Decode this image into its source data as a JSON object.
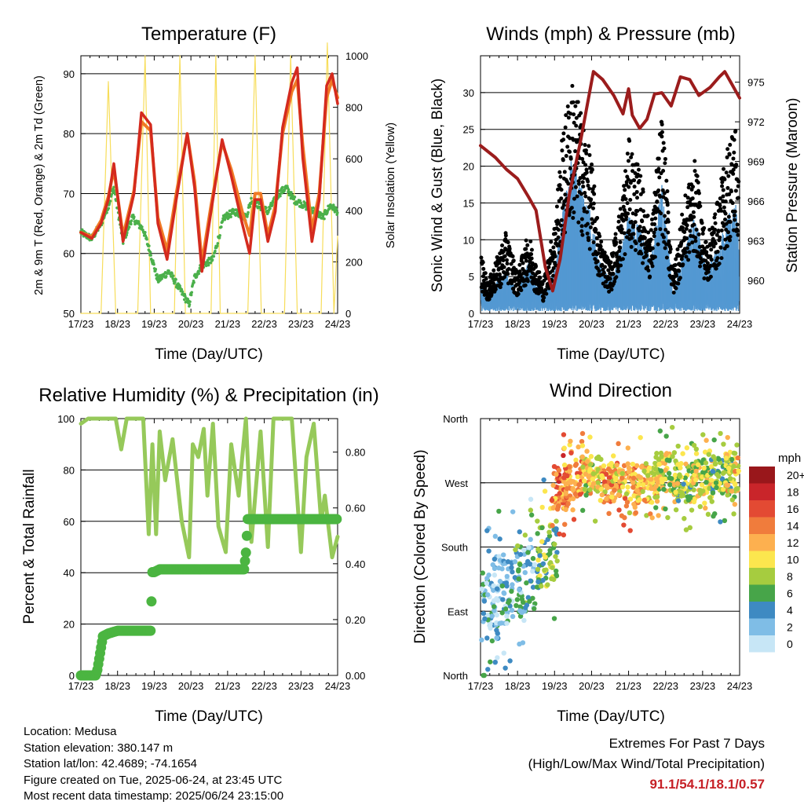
{
  "colors": {
    "temp_2m": "#d42a1e",
    "temp_9m": "#f07a25",
    "dewpoint": "#4bb04b",
    "solar": "#f7dd5a",
    "wind": "#5499d2",
    "gust": "#000000",
    "pressure": "#9b1c1c",
    "rh": "#96c95a",
    "precip": "#4bb541"
  },
  "charts": {
    "temperature": {
      "title": "Temperature (F)",
      "ylabel": "2m & 9m T (Red, Orange) & 2m Td (Green)",
      "y2label": "Solar Insolation (Yellow)",
      "xlabel": "Time (Day/UTC)"
    },
    "winds": {
      "title": "Winds (mph) & Pressure (mb)",
      "ylabel": "Sonic Wind & Gust (Blue, Black)",
      "y2label": "Station Pressure (Maroon)",
      "xlabel": "Time (Day/UTC)"
    },
    "rh": {
      "title": "Relative Humidity (%) & Precipitation (in)",
      "ylabel": "Percent & Total Rainfall",
      "xlabel": "Time (Day/UTC)"
    },
    "direction": {
      "title": "Wind Direction",
      "ylabel": "Direction (Colored By Speed)",
      "xlabel": "Time (Day/UTC)",
      "legend_title": "mph"
    }
  },
  "info": {
    "location": "Location: Medusa",
    "elevation": "Station elevation: 380.147 m",
    "latlon": "Station lat/lon: 42.4689; -74.1654",
    "created": "Figure created on Tue, 2025-06-24, at 23:45 UTC",
    "recent": "Most recent data timestamp: 2025/06/24 23:15:00"
  },
  "extremes": {
    "line1": "Extremes For Past 7 Days",
    "line2": "(High/Low/Max Wind/Total Precipitation)",
    "values": "91.1/54.1/18.1/0.57"
  },
  "chart_data": [
    {
      "type": "line",
      "title": "Temperature (F)",
      "xlabel": "Time (Day/UTC)",
      "ylabel": "2m & 9m T (Red, Orange) & 2m Td (Green)",
      "y2label": "Solar Insolation (Yellow)",
      "x_ticks": [
        "17/23",
        "18/23",
        "19/23",
        "20/23",
        "21/23",
        "22/23",
        "23/23",
        "24/23"
      ],
      "xlim": [
        0,
        7
      ],
      "ylim": [
        50,
        93
      ],
      "y_ticks": [
        50,
        60,
        70,
        80,
        90
      ],
      "y2lim": [
        0,
        1000
      ],
      "y2_ticks": [
        0,
        200,
        400,
        600,
        800,
        1000
      ],
      "series": [
        {
          "name": "2m T",
          "color": "#d42a1e",
          "x": [
            0,
            0.3,
            0.55,
            0.75,
            0.9,
            1.15,
            1.45,
            1.65,
            1.9,
            2.1,
            2.35,
            2.6,
            2.9,
            3.1,
            3.3,
            3.55,
            3.85,
            4.1,
            4.4,
            4.6,
            4.75,
            4.9,
            5.1,
            5.3,
            5.5,
            5.75,
            5.9,
            6.05,
            6.3,
            6.5,
            6.7,
            6.85,
            7.0
          ],
          "y": [
            63.5,
            62.5,
            65,
            69,
            75,
            62,
            70,
            83.5,
            81.5,
            65,
            59,
            69,
            80,
            71,
            57,
            67,
            79,
            73,
            65,
            60,
            69,
            69,
            62,
            67,
            81,
            88.5,
            91,
            76,
            62,
            69,
            88,
            90,
            85
          ]
        },
        {
          "name": "9m T",
          "color": "#f07a25",
          "x": [
            0,
            0.3,
            0.55,
            0.75,
            0.9,
            1.15,
            1.45,
            1.65,
            1.9,
            2.1,
            2.35,
            2.6,
            2.9,
            3.1,
            3.3,
            3.55,
            3.85,
            4.1,
            4.4,
            4.6,
            4.75,
            4.9,
            5.1,
            5.3,
            5.5,
            5.75,
            5.9,
            6.05,
            6.3,
            6.5,
            6.7,
            6.85,
            7.0
          ],
          "y": [
            63.5,
            62.8,
            65.5,
            69.5,
            74,
            63,
            70.5,
            82,
            80.5,
            66,
            60.5,
            70,
            80,
            72,
            58.5,
            68,
            78.5,
            74,
            67,
            63,
            70,
            70,
            63,
            68,
            80,
            87,
            89,
            78,
            64,
            70,
            86,
            89,
            86
          ]
        },
        {
          "name": "2m Td",
          "color": "#4bb04b",
          "x": [
            0,
            0.3,
            0.55,
            0.75,
            0.9,
            1.15,
            1.4,
            1.7,
            1.9,
            2.1,
            2.4,
            2.7,
            2.95,
            3.1,
            3.3,
            3.6,
            3.9,
            4.2,
            4.5,
            4.65,
            4.85,
            5.1,
            5.4,
            5.6,
            5.8,
            6.1,
            6.4,
            6.6,
            6.8,
            7.0
          ],
          "y": [
            63.5,
            62.5,
            65,
            68,
            71,
            62,
            66,
            64,
            60,
            55.5,
            57,
            54,
            51.5,
            56,
            58,
            59,
            66,
            67,
            66,
            69,
            68,
            67,
            70,
            71,
            69,
            68,
            67,
            66,
            68,
            67
          ]
        },
        {
          "name": "Solar Insolation",
          "color": "#f7dd5a",
          "axis": "y2",
          "x": [
            0,
            0.55,
            0.75,
            0.95,
            1.55,
            1.75,
            1.9,
            2.55,
            2.7,
            2.85,
            3.55,
            3.68,
            3.8,
            4.55,
            4.75,
            4.92,
            5.55,
            5.72,
            5.9,
            6.55,
            6.72,
            6.9,
            7.0
          ],
          "y": [
            0,
            0,
            900,
            0,
            0,
            1000,
            0,
            0,
            1000,
            0,
            0,
            1000,
            0,
            0,
            1000,
            0,
            0,
            1000,
            0,
            0,
            1050,
            0,
            300
          ]
        }
      ]
    },
    {
      "type": "line",
      "title": "Winds (mph) & Pressure (mb)",
      "xlabel": "Time (Day/UTC)",
      "ylabel": "Sonic Wind & Gust (Blue, Black)",
      "y2label": "Station Pressure (Maroon)",
      "x_ticks": [
        "17/23",
        "18/23",
        "19/23",
        "20/23",
        "21/23",
        "22/23",
        "23/23",
        "24/23"
      ],
      "xlim": [
        0,
        7
      ],
      "ylim": [
        0,
        35
      ],
      "y_ticks": [
        0,
        5,
        10,
        15,
        20,
        25,
        30
      ],
      "y2lim": [
        957.5,
        977
      ],
      "y2_ticks": [
        960,
        963,
        966,
        969,
        972,
        975
      ],
      "series": [
        {
          "name": "Station Pressure",
          "color": "#9b1c1c",
          "axis": "y2",
          "x": [
            0,
            0.4,
            0.7,
            1.0,
            1.3,
            1.5,
            1.75,
            1.95,
            2.15,
            2.4,
            2.7,
            3.05,
            3.3,
            3.6,
            3.85,
            4.0,
            4.1,
            4.3,
            4.5,
            4.7,
            4.9,
            5.15,
            5.4,
            5.65,
            5.9,
            6.2,
            6.45,
            6.6,
            6.8,
            7.0
          ],
          "y": [
            970.2,
            969.3,
            968.4,
            967.7,
            966.3,
            965.3,
            961,
            959.2,
            961.6,
            966.5,
            970.5,
            975.8,
            975.2,
            974,
            972.6,
            974.5,
            972.5,
            971.5,
            972.2,
            974.1,
            974.2,
            973.2,
            975.4,
            975.2,
            974,
            974.6,
            975.4,
            975.8,
            974.8,
            973.8
          ]
        },
        {
          "name": "Sonic Wind",
          "color": "#5499d2",
          "x": [
            0,
            0.2,
            0.4,
            0.7,
            1.0,
            1.3,
            1.5,
            1.7,
            2.0,
            2.2,
            2.45,
            2.7,
            3.0,
            3.2,
            3.5,
            3.8,
            4.0,
            4.3,
            4.6,
            4.9,
            5.2,
            5.5,
            5.8,
            6.1,
            6.4,
            6.7,
            6.9,
            7.0
          ],
          "y": [
            3,
            2,
            3,
            4,
            2,
            5,
            3,
            2,
            4,
            9,
            14,
            12,
            9,
            5,
            3,
            6,
            9,
            8,
            5,
            12,
            2,
            6,
            9,
            4,
            6,
            9,
            10,
            6
          ]
        },
        {
          "name": "Gust",
          "color": "#000000",
          "x": [
            0,
            0.2,
            0.4,
            0.7,
            1.0,
            1.3,
            1.5,
            1.7,
            2.0,
            2.2,
            2.45,
            2.7,
            3.0,
            3.2,
            3.5,
            3.8,
            4.0,
            4.3,
            4.6,
            4.9,
            5.2,
            5.5,
            5.8,
            6.1,
            6.4,
            6.7,
            6.9,
            7.0
          ],
          "y": [
            6,
            3,
            5,
            8,
            4,
            8,
            5,
            3,
            9,
            17,
            23,
            20,
            15,
            8,
            5,
            11,
            17,
            14,
            8,
            20,
            4,
            11,
            15,
            7,
            11,
            17,
            19,
            12
          ]
        }
      ]
    },
    {
      "type": "line",
      "title": "Relative Humidity (%) & Precipitation (in)",
      "xlabel": "Time (Day/UTC)",
      "ylabel": "Percent & Total Rainfall",
      "x_ticks": [
        "17/23",
        "18/23",
        "19/23",
        "20/23",
        "21/23",
        "22/23",
        "23/23",
        "24/23"
      ],
      "xlim": [
        0,
        7
      ],
      "ylim": [
        0,
        100
      ],
      "y_ticks": [
        0,
        20,
        40,
        60,
        80,
        100
      ],
      "y2lim": [
        0,
        0.92
      ],
      "y2_ticks": [
        0.0,
        0.2,
        0.4,
        0.6,
        0.8
      ],
      "series": [
        {
          "name": "Relative Humidity",
          "color": "#96c95a",
          "x": [
            0,
            0.2,
            0.5,
            0.75,
            0.95,
            1.1,
            1.25,
            1.5,
            1.7,
            1.85,
            1.95,
            2.05,
            2.15,
            2.3,
            2.5,
            2.75,
            2.95,
            3.05,
            3.2,
            3.35,
            3.45,
            3.6,
            3.75,
            3.95,
            4.1,
            4.3,
            4.5,
            4.65,
            4.9,
            5.1,
            5.25,
            5.45,
            5.75,
            6.0,
            6.15,
            6.35,
            6.55,
            6.65,
            6.85,
            7.0
          ],
          "y": [
            98,
            100,
            100,
            100,
            100,
            88,
            100,
            100,
            100,
            55,
            90,
            55,
            95,
            76,
            92,
            60,
            46,
            90,
            85,
            96,
            70,
            98,
            58,
            48,
            90,
            70,
            100,
            52,
            95,
            50,
            100,
            100,
            100,
            48,
            85,
            98,
            60,
            70,
            46,
            54
          ]
        },
        {
          "name": "Total Precipitation",
          "color": "#4bb541",
          "axis": "y2",
          "x": [
            0,
            0.4,
            0.45,
            0.5,
            0.55,
            0.6,
            0.75,
            1.0,
            1.5,
            1.9,
            1.95,
            2.0,
            2.15,
            2.4,
            3.0,
            3.6,
            4.0,
            4.45,
            4.5,
            4.55,
            5.0,
            5.5,
            6.0,
            6.5,
            7.0
          ],
          "y": [
            0,
            0,
            0.02,
            0.06,
            0.1,
            0.14,
            0.15,
            0.16,
            0.16,
            0.16,
            0.37,
            0.37,
            0.38,
            0.38,
            0.38,
            0.38,
            0.38,
            0.38,
            0.44,
            0.56,
            0.56,
            0.56,
            0.56,
            0.56,
            0.56
          ]
        }
      ]
    },
    {
      "type": "scatter",
      "title": "Wind Direction",
      "xlabel": "Time (Day/UTC)",
      "ylabel": "Direction (Colored By Speed)",
      "x_ticks": [
        "17/23",
        "18/23",
        "19/23",
        "20/23",
        "21/23",
        "22/23",
        "23/23",
        "24/23"
      ],
      "xlim": [
        0,
        7
      ],
      "y_ticks": [
        "North",
        "East",
        "South",
        "West",
        "North"
      ],
      "ylim": [
        0,
        360
      ],
      "colorbar": {
        "title": "mph",
        "labels": [
          "20+",
          "18",
          "16",
          "14",
          "12",
          "10",
          "8",
          "6",
          "4",
          "2",
          "0"
        ],
        "colors": [
          "#99171b",
          "#c9252a",
          "#e34a33",
          "#f07c3c",
          "#fdb04f",
          "#fce64e",
          "#a6cc3f",
          "#47a549",
          "#3e8ac2",
          "#7fbde6",
          "#c7e6f6"
        ]
      },
      "clusters": [
        {
          "x": 0.2,
          "dir": 95,
          "speed": 3
        },
        {
          "x": 0.6,
          "dir": 120,
          "speed": 3
        },
        {
          "x": 1.2,
          "dir": 135,
          "speed": 4
        },
        {
          "x": 1.8,
          "dir": 170,
          "speed": 7
        },
        {
          "x": 2.2,
          "dir": 260,
          "speed": 14
        },
        {
          "x": 2.5,
          "dir": 275,
          "speed": 13
        },
        {
          "x": 3.0,
          "dir": 280,
          "speed": 10
        },
        {
          "x": 3.5,
          "dir": 270,
          "speed": 12
        },
        {
          "x": 4.0,
          "dir": 265,
          "speed": 12
        },
        {
          "x": 4.5,
          "dir": 270,
          "speed": 11
        },
        {
          "x": 5.0,
          "dir": 285,
          "speed": 9
        },
        {
          "x": 5.5,
          "dir": 270,
          "speed": 8
        },
        {
          "x": 6.0,
          "dir": 275,
          "speed": 9
        },
        {
          "x": 6.5,
          "dir": 280,
          "speed": 7
        },
        {
          "x": 6.9,
          "dir": 285,
          "speed": 10
        }
      ]
    }
  ]
}
